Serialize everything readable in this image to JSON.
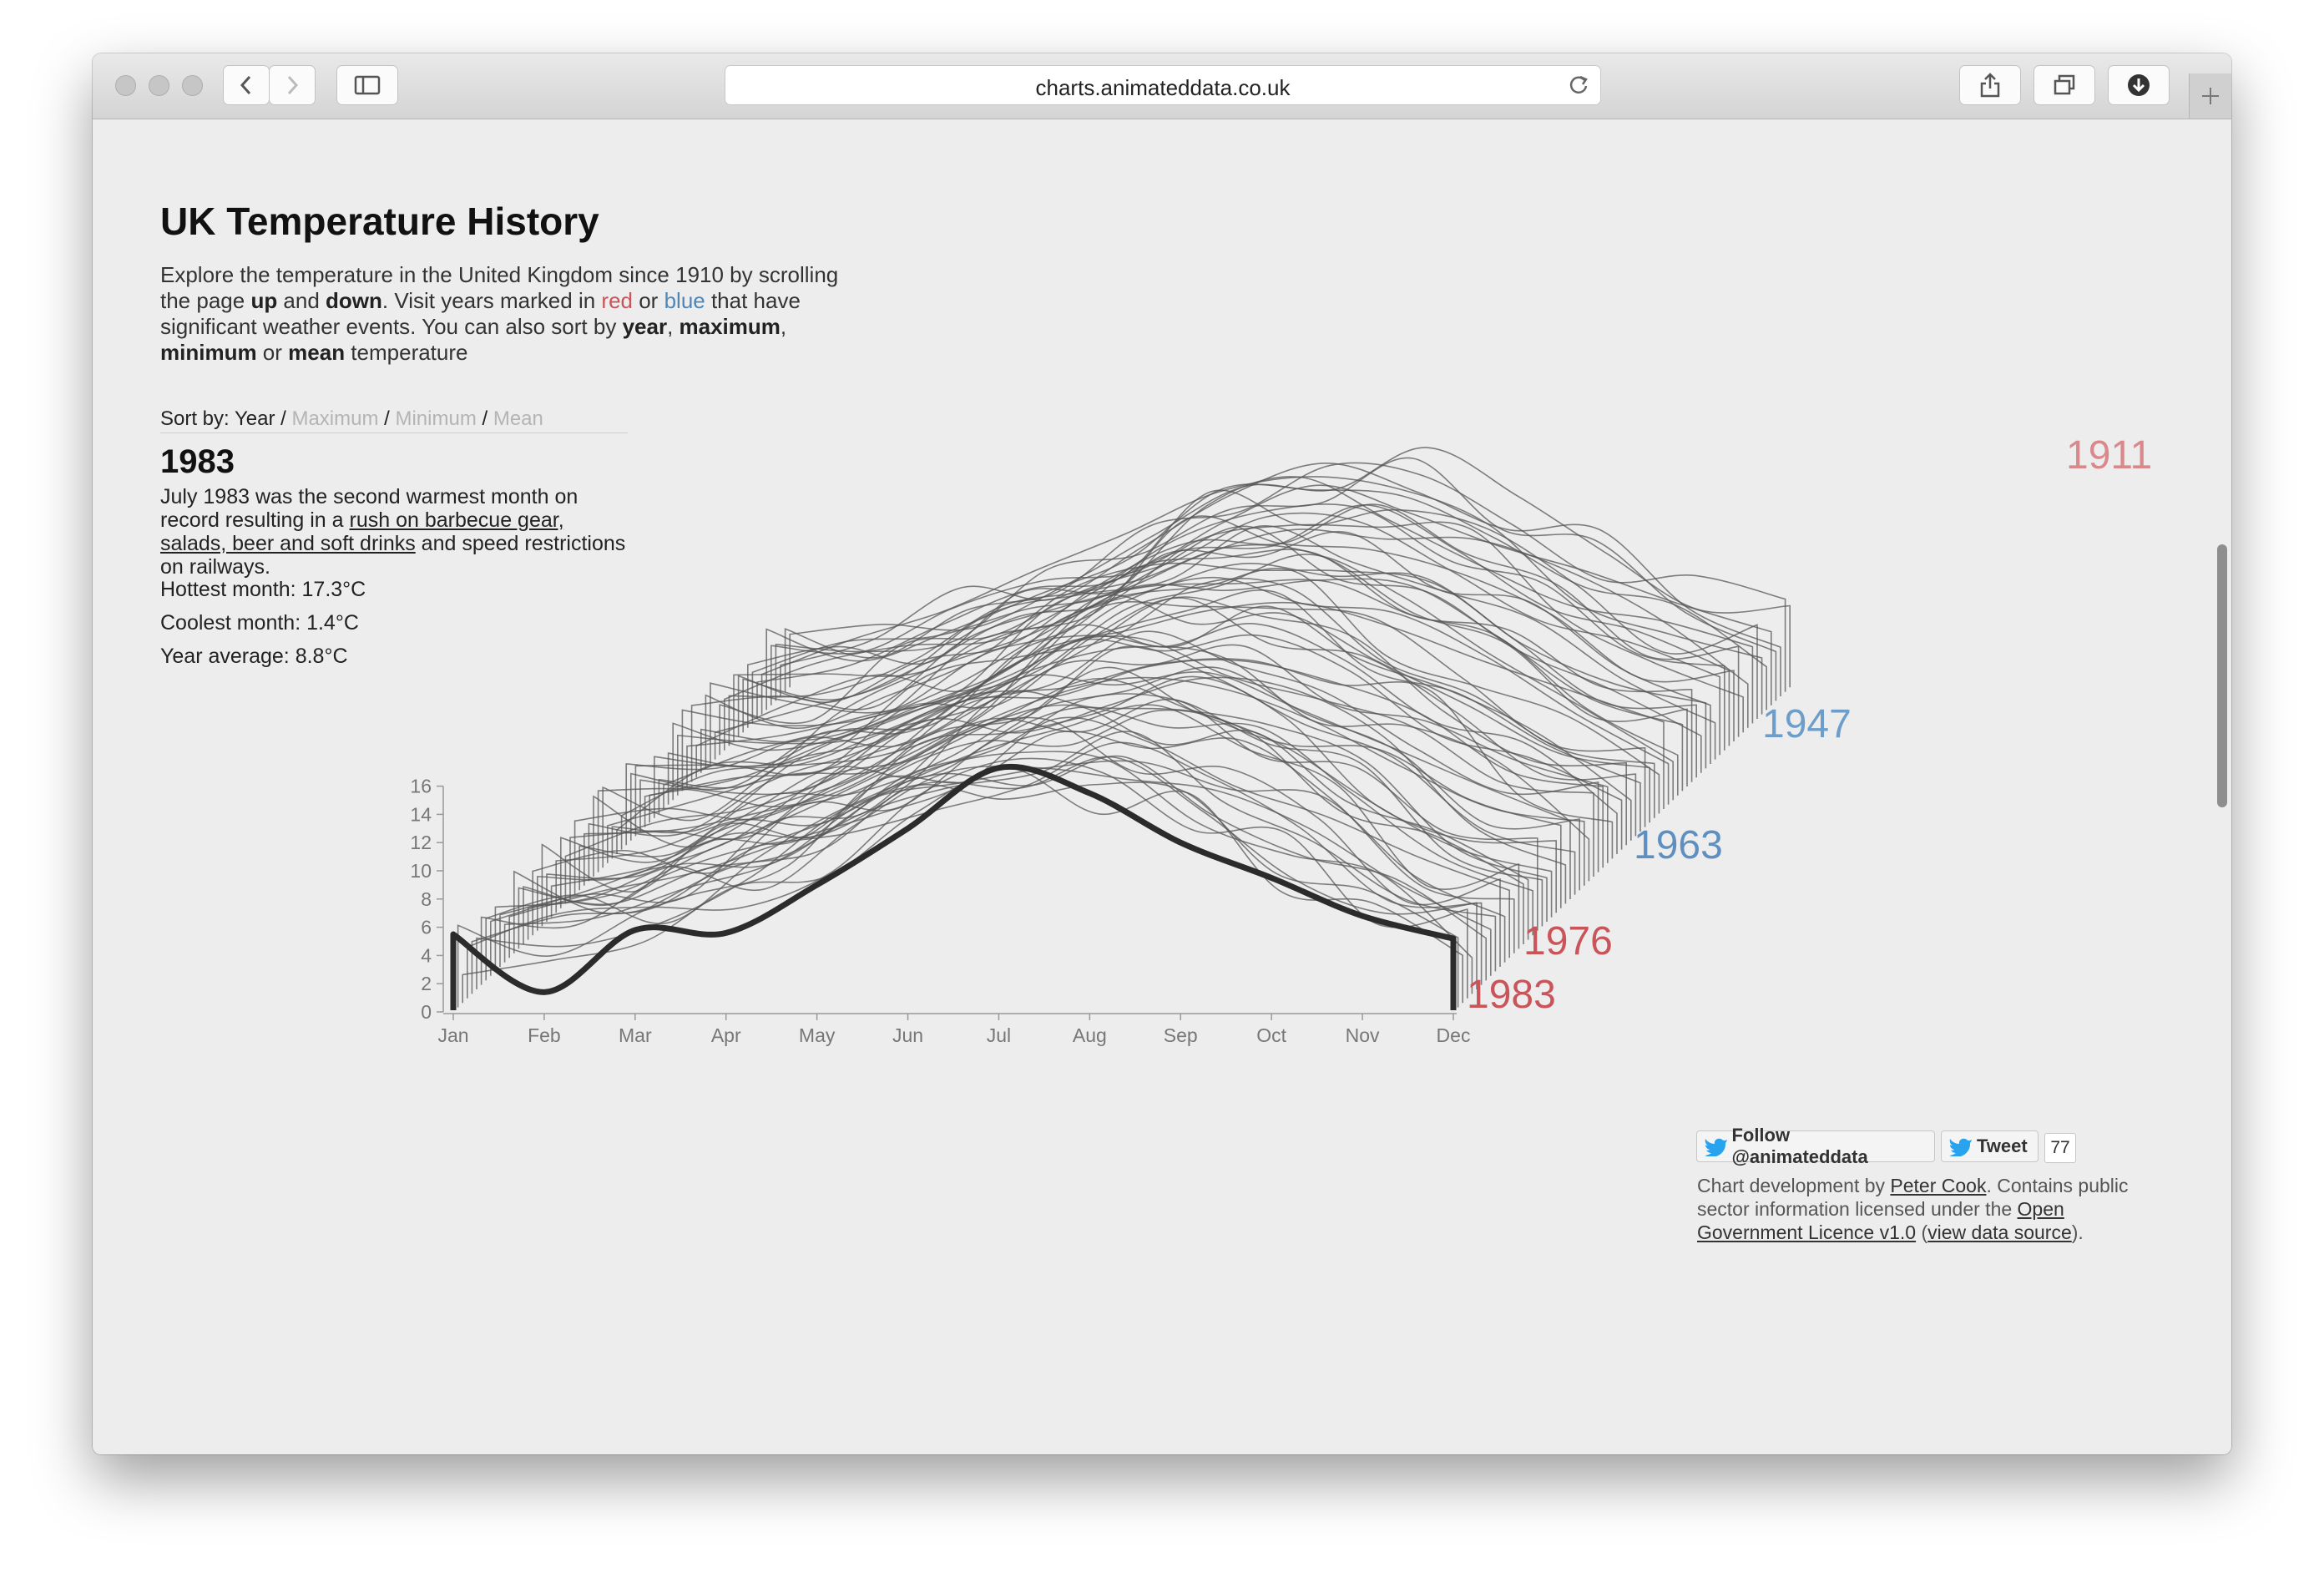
{
  "browser": {
    "url": "charts.animateddata.co.uk"
  },
  "page": {
    "title": "UK Temperature History",
    "intro_1": "Explore the temperature in the United Kingdom since 1910 by scrolling the page ",
    "intro_up": "up",
    "intro_and": " and ",
    "intro_down": "down",
    "intro_2": ". Visit years marked in ",
    "intro_red": "red",
    "intro_or": " or ",
    "intro_blue": "blue",
    "intro_3": " that have significant weather events. You can also sort by ",
    "intro_year": "year",
    "intro_comma": ", ",
    "intro_max": "maximum",
    "intro_comma2": ",",
    "intro_min": "minimum",
    "intro_or2": " or ",
    "intro_mean": "mean",
    "intro_4": " temperature",
    "sort_label": "Sort by:",
    "sort_options": [
      "Year",
      "Maximum",
      "Minimum",
      "Mean"
    ],
    "sort_separator": "/",
    "selected_year": "1983",
    "desc_1": "July 1983 was the second warmest month on record resulting in a ",
    "desc_link": "rush on barbecue gear, salads, beer and soft drinks",
    "desc_2": " and speed restrictions on railways.",
    "hottest": "Hottest month: 17.3°C",
    "coolest": "Coolest month: 1.4°C",
    "average": "Year average: 8.8°C",
    "follow_label": "Follow @animateddata",
    "tweet_label": "Tweet",
    "tweet_count": "77",
    "credit_1": "Chart development by ",
    "credit_author": "Peter Cook",
    "credit_2": ". Contains public sector information licensed under the ",
    "credit_licence": "Open Government Licence v1.0",
    "credit_3": " (",
    "credit_source": "view data source",
    "credit_4": ")."
  },
  "chart_data": {
    "type": "line",
    "x": [
      "Jan",
      "Feb",
      "Mar",
      "Apr",
      "May",
      "Jun",
      "Jul",
      "Aug",
      "Sep",
      "Oct",
      "Nov",
      "Dec"
    ],
    "ylim": [
      0,
      16
    ],
    "yticks": [
      0,
      2,
      4,
      6,
      8,
      10,
      12,
      14,
      16
    ],
    "highlighted_year_series": {
      "name": "1983",
      "values": [
        5.5,
        1.4,
        5.8,
        5.6,
        9.0,
        13.0,
        17.3,
        15.5,
        12.0,
        9.5,
        6.8,
        5.2
      ]
    },
    "background_years_range": "1911–1982",
    "marked_years": [
      {
        "year": "1911",
        "color": "#d9898c"
      },
      {
        "year": "1947",
        "color": "#6d9dc9"
      },
      {
        "year": "1963",
        "color": "#5d90c0"
      },
      {
        "year": "1976",
        "color": "#c9545a"
      },
      {
        "year": "1983",
        "color": "#c9545a"
      }
    ],
    "colors": {
      "highlight": "#2b2b2b",
      "background_line": "#555555",
      "axis": "#999999"
    }
  }
}
